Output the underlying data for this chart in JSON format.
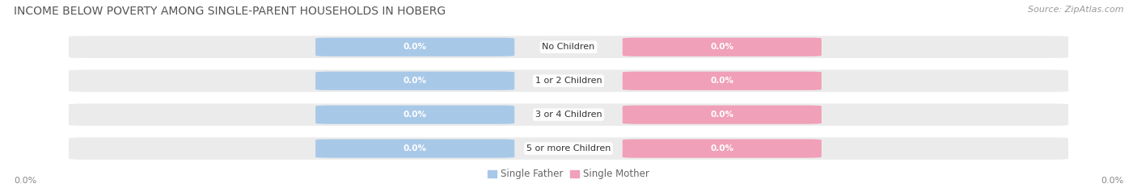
{
  "title": "INCOME BELOW POVERTY AMONG SINGLE-PARENT HOUSEHOLDS IN HOBERG",
  "source_text": "Source: ZipAtlas.com",
  "categories": [
    "No Children",
    "1 or 2 Children",
    "3 or 4 Children",
    "5 or more Children"
  ],
  "single_father_values": [
    0.0,
    0.0,
    0.0,
    0.0
  ],
  "single_mother_values": [
    0.0,
    0.0,
    0.0,
    0.0
  ],
  "father_color": "#a8c8e8",
  "mother_color": "#f0a0b8",
  "bar_bg_color": "#ebebeb",
  "title_fontsize": 10,
  "axis_label_fontsize": 8,
  "legend_fontsize": 8.5,
  "source_fontsize": 8,
  "x_left_label": "0.0%",
  "x_right_label": "0.0%",
  "figsize": [
    14.06,
    2.33
  ],
  "dpi": 100
}
